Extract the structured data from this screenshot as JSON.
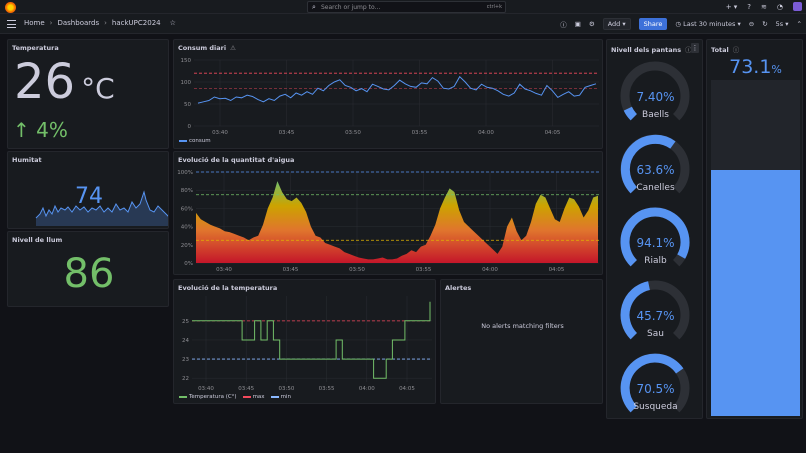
{
  "topbar": {
    "search_placeholder": "Search or jump to...",
    "search_shortcut": "ctrl+k"
  },
  "breadcrumb": {
    "home": "Home",
    "dashboards": "Dashboards",
    "current": "hackUPC2024"
  },
  "toolbar": {
    "add_label": "Add",
    "share_label": "Share",
    "time_range": "Last 30 minutes",
    "refresh_interval": "5s"
  },
  "temperatura": {
    "title": "Temperatura",
    "value": "26",
    "unit": "°C",
    "delta": "4%",
    "delta_color": "#73bf69"
  },
  "humitat": {
    "title": "Humitat",
    "value": "74"
  },
  "llum": {
    "title": "Nivell de llum",
    "value": "86"
  },
  "consum": {
    "title": "Consum diari",
    "legend": "consum",
    "color": "#5794f2"
  },
  "aigua": {
    "title": "Evolució de la quantitat d'aigua"
  },
  "temp_evolucio": {
    "title": "Evolució de la temperatura",
    "legend": {
      "temp": "Temperatura (C°)",
      "max": "max",
      "min": "min"
    },
    "colors": {
      "temp": "#73bf69",
      "max": "#f2495c",
      "min": "#8ab8ff"
    }
  },
  "alertes": {
    "title": "Alertes",
    "empty": "No alerts matching filters"
  },
  "nivell": {
    "title": "Nivell dels pantans",
    "gauges": [
      {
        "name": "Baells",
        "value": "7.40%",
        "fraction": 0.074
      },
      {
        "name": "Canelles",
        "value": "63.6%",
        "fraction": 0.636
      },
      {
        "name": "Rialb",
        "value": "94.1%",
        "fraction": 0.941
      },
      {
        "name": "Sau",
        "value": "45.7%",
        "fraction": 0.457
      },
      {
        "name": "Susqueda",
        "value": "70.5%",
        "fraction": 0.705
      }
    ]
  },
  "total": {
    "title": "Total",
    "value": "73.1",
    "unit": "%",
    "fraction": 0.731,
    "color": "#5794f2"
  },
  "chart_data": [
    {
      "type": "line",
      "title": "Consum diari",
      "x_ticks": [
        "03:40",
        "03:45",
        "03:50",
        "03:55",
        "04:00",
        "04:05"
      ],
      "y_ticks": [
        "0",
        "50",
        "100",
        "150"
      ],
      "ylim": [
        0,
        150
      ],
      "thresholds": [
        120,
        85
      ],
      "series": [
        {
          "name": "consum",
          "values": [
            52,
            55,
            58,
            66,
            62,
            63,
            58,
            66,
            64,
            70,
            67,
            60,
            55,
            62,
            58,
            68,
            72,
            64,
            75,
            70,
            78,
            72,
            86,
            80,
            92,
            100,
            105,
            92,
            88,
            80,
            85,
            78,
            95,
            90,
            84,
            82,
            92,
            104,
            96,
            90,
            88,
            98,
            96,
            110,
            102,
            86,
            84,
            90,
            112,
            100,
            86,
            82,
            95,
            88,
            86,
            80,
            72,
            68,
            75,
            95,
            84,
            80,
            74,
            70,
            92,
            80,
            65,
            72,
            78,
            68,
            70,
            88,
            92,
            96
          ]
        }
      ]
    },
    {
      "type": "area",
      "title": "Evolució de la quantitat d'aigua",
      "x_ticks": [
        "03:40",
        "03:45",
        "03:50",
        "03:55",
        "04:00",
        "04:05"
      ],
      "y_ticks": [
        "0%",
        "20%",
        "40%",
        "60%",
        "80%",
        "100%"
      ],
      "ylim": [
        0,
        100
      ],
      "thresholds": [
        100,
        75,
        25
      ],
      "series": [
        {
          "name": "",
          "values": [
            55,
            48,
            45,
            42,
            40,
            38,
            35,
            34,
            32,
            30,
            28,
            25,
            28,
            30,
            42,
            60,
            72,
            90,
            78,
            70,
            68,
            72,
            66,
            56,
            40,
            30,
            28,
            22,
            20,
            18,
            16,
            12,
            10,
            8,
            6,
            5,
            4,
            4,
            5,
            6,
            4,
            4,
            5,
            8,
            10,
            14,
            12,
            18,
            20,
            30,
            42,
            60,
            72,
            82,
            78,
            58,
            45,
            40,
            35,
            30,
            25,
            20,
            15,
            10,
            18,
            40,
            50,
            35,
            25,
            30,
            45,
            65,
            75,
            72,
            60,
            48,
            45,
            60,
            72,
            70,
            62,
            50,
            58,
            72,
            74
          ]
        }
      ]
    },
    {
      "type": "line",
      "title": "Evolució de la temperatura",
      "x_ticks": [
        "03:40",
        "03:45",
        "03:50",
        "03:55",
        "04:00",
        "04:05"
      ],
      "y_ticks": [
        "22",
        "23",
        "24",
        "25"
      ],
      "ylim": [
        21.8,
        26.3
      ],
      "series": [
        {
          "name": "Temperatura (C°)",
          "values": [
            25,
            25,
            25,
            25,
            25,
            25,
            25,
            25,
            24,
            24,
            25,
            24,
            25,
            24,
            23,
            23,
            23,
            23,
            23,
            23,
            23,
            23,
            23,
            24,
            23,
            23,
            23,
            23,
            23,
            22,
            22,
            23,
            24,
            24,
            25,
            25,
            25,
            25,
            26
          ]
        },
        {
          "name": "max",
          "values": [
            25,
            25
          ]
        },
        {
          "name": "min",
          "values": [
            23,
            23
          ]
        }
      ]
    }
  ]
}
